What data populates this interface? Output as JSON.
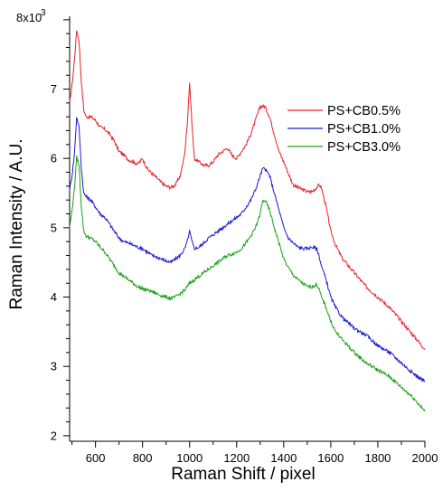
{
  "chart_data": {
    "type": "line",
    "xlabel": "Raman Shift / pixel",
    "ylabel": "Raman Intensity / A.U.",
    "y_multiplier_label": "8x10",
    "y_multiplier_exponent": "3",
    "xlim": [
      490,
      2000
    ],
    "ylim": [
      1.92,
      8.05
    ],
    "x_ticks": [
      600,
      800,
      1000,
      1200,
      1400,
      1600,
      1800,
      2000
    ],
    "y_ticks": [
      2,
      3,
      4,
      5,
      6,
      7
    ],
    "x_tick_labels": [
      "600",
      "800",
      "1000",
      "1200",
      "1400",
      "1600",
      "1800",
      "2000"
    ],
    "y_tick_labels": [
      "2",
      "3",
      "4",
      "5",
      "6",
      "7"
    ],
    "grid": false,
    "legend_position": "top-right",
    "series": [
      {
        "name": "PS+CB0.5%",
        "color": "#e8202a",
        "x": [
          490,
          500,
          510,
          520,
          530,
          540,
          550,
          560,
          580,
          600,
          620,
          640,
          660,
          680,
          700,
          720,
          740,
          760,
          780,
          800,
          820,
          840,
          860,
          880,
          900,
          920,
          940,
          960,
          970,
          980,
          990,
          1000,
          1010,
          1020,
          1040,
          1060,
          1080,
          1100,
          1120,
          1140,
          1160,
          1180,
          1200,
          1220,
          1240,
          1260,
          1280,
          1300,
          1320,
          1340,
          1360,
          1380,
          1400,
          1420,
          1440,
          1460,
          1480,
          1500,
          1520,
          1540,
          1550,
          1560,
          1580,
          1600,
          1620,
          1650,
          1700,
          1750,
          1800,
          1850,
          1900,
          1950,
          2000
        ],
        "values": [
          6.8,
          7.05,
          7.4,
          7.85,
          7.7,
          7.1,
          6.7,
          6.6,
          6.6,
          6.55,
          6.45,
          6.42,
          6.35,
          6.25,
          6.1,
          6.05,
          5.98,
          5.95,
          5.92,
          6.0,
          5.85,
          5.78,
          5.72,
          5.65,
          5.6,
          5.58,
          5.62,
          5.75,
          5.9,
          6.1,
          6.5,
          7.1,
          6.5,
          6.0,
          5.95,
          5.9,
          5.9,
          5.95,
          6.05,
          6.1,
          6.15,
          6.05,
          6.0,
          6.1,
          6.2,
          6.35,
          6.55,
          6.75,
          6.75,
          6.6,
          6.35,
          6.1,
          5.95,
          5.78,
          5.62,
          5.58,
          5.55,
          5.52,
          5.52,
          5.58,
          5.62,
          5.58,
          5.3,
          4.95,
          4.75,
          4.55,
          4.35,
          4.15,
          4.0,
          3.85,
          3.65,
          3.45,
          3.25
        ]
      },
      {
        "name": "PS+CB1.0%",
        "color": "#1a1ad0",
        "x": [
          490,
          500,
          510,
          520,
          530,
          540,
          550,
          560,
          580,
          600,
          620,
          640,
          660,
          680,
          700,
          720,
          740,
          760,
          780,
          800,
          820,
          840,
          860,
          880,
          900,
          920,
          940,
          960,
          980,
          990,
          1000,
          1010,
          1020,
          1040,
          1060,
          1080,
          1100,
          1120,
          1140,
          1160,
          1180,
          1200,
          1220,
          1240,
          1260,
          1280,
          1300,
          1310,
          1320,
          1340,
          1360,
          1380,
          1400,
          1420,
          1440,
          1460,
          1480,
          1500,
          1520,
          1540,
          1550,
          1560,
          1580,
          1600,
          1620,
          1650,
          1700,
          1750,
          1800,
          1850,
          1900,
          1950,
          2000
        ],
        "values": [
          5.55,
          5.75,
          6.05,
          6.6,
          6.45,
          5.85,
          5.5,
          5.45,
          5.4,
          5.3,
          5.2,
          5.15,
          5.05,
          4.95,
          4.85,
          4.8,
          4.78,
          4.75,
          4.72,
          4.7,
          4.65,
          4.6,
          4.58,
          4.55,
          4.52,
          4.5,
          4.55,
          4.6,
          4.7,
          4.8,
          4.95,
          4.8,
          4.7,
          4.72,
          4.78,
          4.85,
          4.9,
          4.95,
          5.0,
          5.05,
          5.1,
          5.15,
          5.2,
          5.3,
          5.4,
          5.55,
          5.75,
          5.85,
          5.85,
          5.75,
          5.5,
          5.25,
          5.0,
          4.85,
          4.78,
          4.72,
          4.7,
          4.7,
          4.72,
          4.7,
          4.6,
          4.45,
          4.25,
          4.0,
          3.85,
          3.7,
          3.55,
          3.45,
          3.3,
          3.2,
          3.05,
          2.9,
          2.78
        ]
      },
      {
        "name": "PS+CB3.0%",
        "color": "#1aa01a",
        "x": [
          490,
          500,
          510,
          520,
          530,
          540,
          550,
          560,
          580,
          600,
          620,
          640,
          660,
          680,
          700,
          720,
          740,
          760,
          780,
          800,
          820,
          840,
          860,
          880,
          900,
          920,
          940,
          960,
          980,
          1000,
          1020,
          1040,
          1060,
          1080,
          1100,
          1120,
          1140,
          1160,
          1180,
          1200,
          1220,
          1240,
          1260,
          1280,
          1300,
          1310,
          1320,
          1340,
          1360,
          1380,
          1400,
          1420,
          1440,
          1460,
          1480,
          1500,
          1520,
          1540,
          1550,
          1560,
          1580,
          1600,
          1620,
          1650,
          1700,
          1750,
          1800,
          1850,
          1900,
          1950,
          2000
        ],
        "values": [
          5.0,
          5.25,
          5.55,
          6.02,
          5.9,
          5.3,
          4.95,
          4.88,
          4.85,
          4.8,
          4.72,
          4.65,
          4.55,
          4.45,
          4.35,
          4.3,
          4.25,
          4.2,
          4.15,
          4.12,
          4.1,
          4.08,
          4.05,
          4.02,
          4.0,
          3.98,
          4.0,
          4.05,
          4.1,
          4.2,
          4.25,
          4.3,
          4.35,
          4.4,
          4.45,
          4.5,
          4.55,
          4.6,
          4.62,
          4.65,
          4.7,
          4.78,
          4.88,
          5.0,
          5.2,
          5.38,
          5.4,
          5.25,
          5.0,
          4.78,
          4.55,
          4.42,
          4.32,
          4.25,
          4.2,
          4.15,
          4.15,
          4.18,
          4.12,
          4.0,
          3.85,
          3.65,
          3.5,
          3.38,
          3.2,
          3.05,
          2.95,
          2.85,
          2.7,
          2.55,
          2.35
        ]
      }
    ]
  }
}
